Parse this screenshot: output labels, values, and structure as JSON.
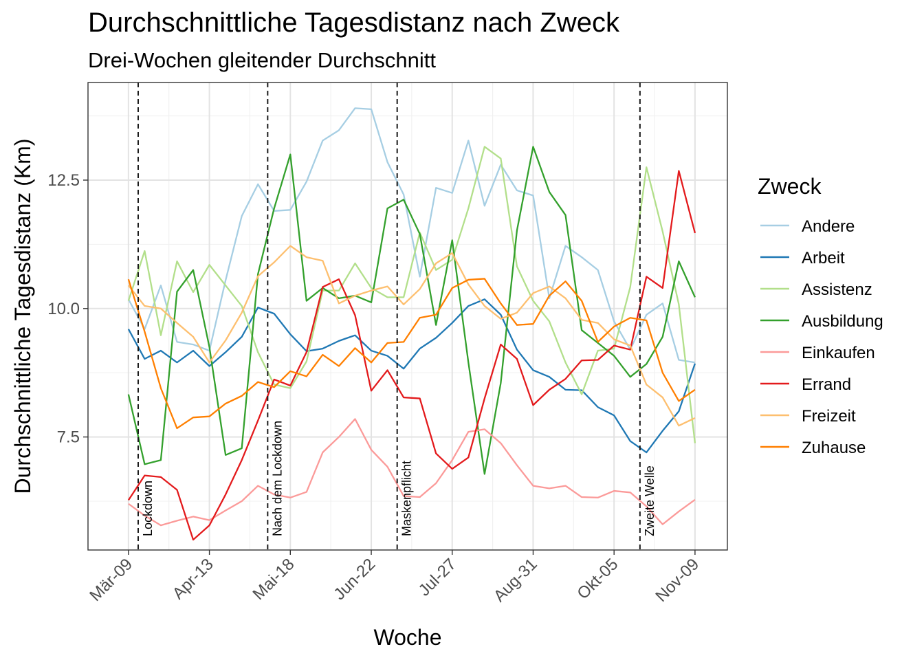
{
  "chart_data": {
    "type": "line",
    "title": "Durchschnittliche Tagesdistanz nach Zweck",
    "subtitle": "Drei-Wochen gleitender Durchschnitt",
    "xlabel": "Woche",
    "ylabel": "Durchschnittliche Tagesdistanz (Km)",
    "ylim": [
      5.3,
      14.4
    ],
    "y_ticks": [
      7.5,
      10.0,
      12.5
    ],
    "y_tick_labels": [
      "7.5",
      "10.0",
      "12.5"
    ],
    "x_start": "2020-03-09",
    "x_ticks": [
      "Mär-09",
      "Apr-13",
      "Mai-18",
      "Jun-22",
      "Jul-27",
      "Aug-31",
      "Okt-05",
      "Nov-09"
    ],
    "x_tick_weeks": [
      0,
      5,
      10,
      15,
      20,
      25,
      30,
      35
    ],
    "grid": true,
    "legend_title": "Zweck",
    "legend_position": "right",
    "events": [
      {
        "week": 0.6,
        "label": "Lockdown"
      },
      {
        "week": 8.6,
        "label": "Nach dem Lockdown"
      },
      {
        "week": 16.6,
        "label": "Maskenpflicht"
      },
      {
        "week": 31.6,
        "label": "Zweite Welle"
      }
    ],
    "series": [
      {
        "name": "Andere",
        "color": "#A6CEE3",
        "values": [
          10.18,
          9.6,
          10.45,
          9.35,
          9.3,
          9.18,
          10.55,
          11.8,
          12.42,
          11.9,
          11.92,
          12.47,
          13.27,
          13.47,
          13.9,
          13.88,
          12.85,
          12.22,
          10.62,
          12.35,
          12.25,
          13.27,
          12.0,
          12.8,
          12.3,
          12.2,
          10.2,
          11.22,
          11.0,
          10.75,
          9.75,
          9.2,
          9.88,
          10.1,
          9.0,
          8.95
        ]
      },
      {
        "name": "Arbeit",
        "color": "#1F78B4",
        "values": [
          9.6,
          9.02,
          9.18,
          8.95,
          9.18,
          8.88,
          9.15,
          9.45,
          10.02,
          9.9,
          9.5,
          9.17,
          9.22,
          9.37,
          9.48,
          9.18,
          9.08,
          8.83,
          9.22,
          9.43,
          9.72,
          10.05,
          10.18,
          9.88,
          9.2,
          8.8,
          8.67,
          8.42,
          8.41,
          8.08,
          7.92,
          7.42,
          7.2,
          7.62,
          8.0,
          8.93
        ]
      },
      {
        "name": "Assistenz",
        "color": "#B2DF8A",
        "values": [
          10.15,
          11.12,
          9.48,
          10.92,
          10.32,
          10.85,
          10.45,
          10.05,
          9.15,
          8.52,
          8.45,
          8.97,
          10.35,
          10.35,
          10.88,
          10.4,
          10.22,
          10.22,
          11.48,
          10.75,
          10.95,
          11.95,
          13.15,
          12.92,
          10.82,
          10.15,
          9.75,
          8.95,
          8.33,
          9.18,
          9.22,
          10.42,
          12.75,
          11.5,
          10.08,
          7.38
        ]
      },
      {
        "name": "Ausbildung",
        "color": "#33A02C",
        "values": [
          8.33,
          6.97,
          7.05,
          10.33,
          10.75,
          9.25,
          7.15,
          7.28,
          10.67,
          11.95,
          13.0,
          10.15,
          10.4,
          10.2,
          10.25,
          10.12,
          11.95,
          12.12,
          11.45,
          9.68,
          11.33,
          8.95,
          6.78,
          8.55,
          11.52,
          13.15,
          12.27,
          11.82,
          9.58,
          9.33,
          9.08,
          8.67,
          8.92,
          9.45,
          10.92,
          10.22
        ]
      },
      {
        "name": "Einkaufen",
        "color": "#FB9A99",
        "values": [
          6.2,
          5.97,
          5.78,
          5.87,
          5.95,
          5.88,
          6.07,
          6.25,
          6.55,
          6.38,
          6.32,
          6.43,
          7.2,
          7.5,
          7.85,
          7.25,
          6.92,
          6.35,
          6.33,
          6.6,
          7.05,
          7.6,
          7.65,
          7.38,
          6.95,
          6.55,
          6.5,
          6.55,
          6.33,
          6.32,
          6.45,
          6.42,
          6.15,
          5.8,
          6.05,
          6.28
        ]
      },
      {
        "name": "Errand",
        "color": "#E31A1C",
        "values": [
          6.27,
          6.75,
          6.72,
          6.47,
          5.5,
          5.78,
          6.38,
          7.05,
          7.82,
          8.62,
          8.5,
          9.15,
          10.42,
          10.57,
          9.87,
          8.4,
          8.8,
          8.27,
          8.25,
          7.18,
          6.88,
          7.1,
          8.25,
          9.3,
          9.02,
          8.12,
          8.42,
          8.63,
          8.99,
          9.0,
          9.28,
          9.2,
          10.62,
          10.4,
          12.68,
          11.47
        ]
      },
      {
        "name": "Freizeit",
        "color": "#FDBF6F",
        "values": [
          10.45,
          10.05,
          10.0,
          9.72,
          9.45,
          8.95,
          9.38,
          9.92,
          10.63,
          10.9,
          11.22,
          11.0,
          10.93,
          10.1,
          10.25,
          10.35,
          10.43,
          10.08,
          10.38,
          10.88,
          11.08,
          10.47,
          10.05,
          9.8,
          9.92,
          10.3,
          10.43,
          10.2,
          9.78,
          9.72,
          9.4,
          9.28,
          8.52,
          8.27,
          7.72,
          7.87
        ]
      },
      {
        "name": "Zuhause",
        "color": "#FF7F00",
        "values": [
          10.57,
          9.55,
          8.45,
          7.67,
          7.88,
          7.9,
          8.15,
          8.3,
          8.57,
          8.47,
          8.78,
          8.68,
          9.1,
          8.88,
          9.23,
          8.95,
          9.33,
          9.35,
          9.82,
          9.88,
          10.4,
          10.56,
          10.58,
          10.1,
          9.68,
          9.7,
          10.25,
          10.53,
          10.15,
          9.35,
          9.65,
          9.82,
          9.77,
          8.75,
          8.2,
          8.42
        ]
      }
    ]
  }
}
